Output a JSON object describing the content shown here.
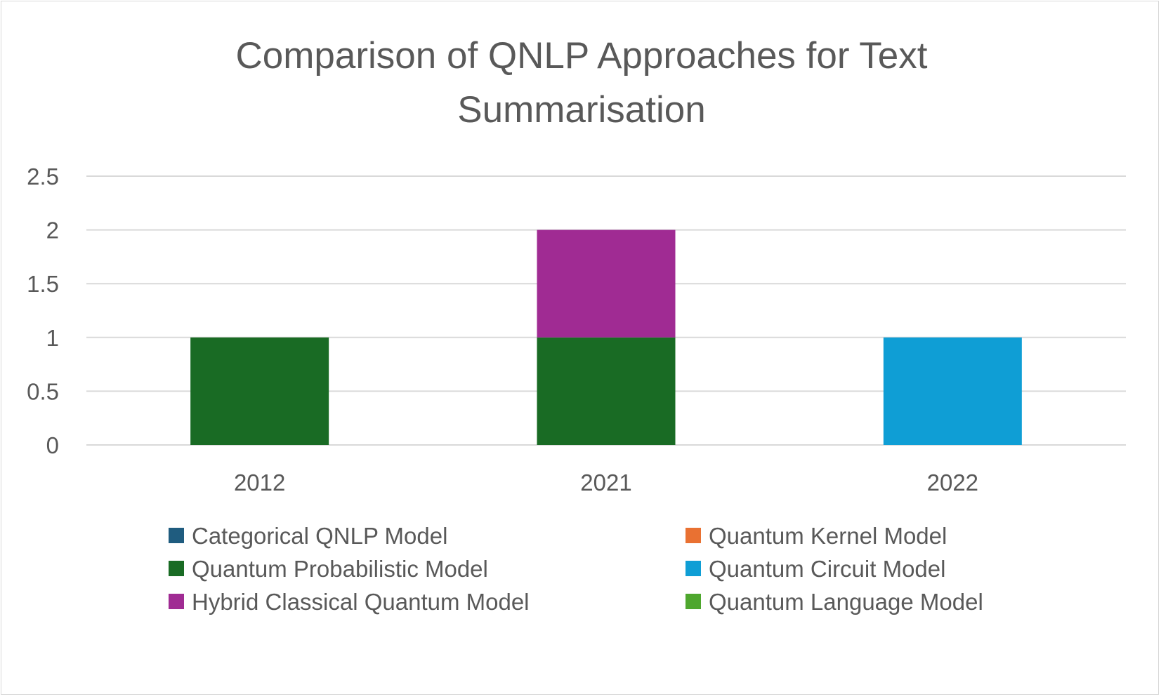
{
  "chart_data": {
    "type": "bar",
    "stacked": true,
    "title_lines": [
      "Comparison of QNLP Approaches for Text",
      "Summarisation"
    ],
    "categories": [
      "2012",
      "2021",
      "2022"
    ],
    "ylim": [
      0,
      2.5
    ],
    "yticks": [
      "0",
      "0.5",
      "1",
      "1.5",
      "2",
      "2.5"
    ],
    "grid": true,
    "legend_placement": "bottom",
    "series": [
      {
        "name": "Categorical QNLP Model",
        "color": "#1f5c7f",
        "values": [
          0,
          0,
          0
        ]
      },
      {
        "name": "Quantum Kernel Model",
        "color": "#e97132",
        "values": [
          0,
          0,
          0
        ]
      },
      {
        "name": "Quantum Probabilistic Model",
        "color": "#196b24",
        "values": [
          1,
          1,
          0
        ]
      },
      {
        "name": "Quantum Circuit Model",
        "color": "#0f9ed5",
        "values": [
          0,
          0,
          1
        ]
      },
      {
        "name": "Hybrid Classical Quantum Model",
        "color": "#a02b93",
        "values": [
          0,
          1,
          0
        ]
      },
      {
        "name": "Quantum Language Model",
        "color": "#4ea72e",
        "values": [
          0,
          0,
          0
        ]
      }
    ]
  }
}
